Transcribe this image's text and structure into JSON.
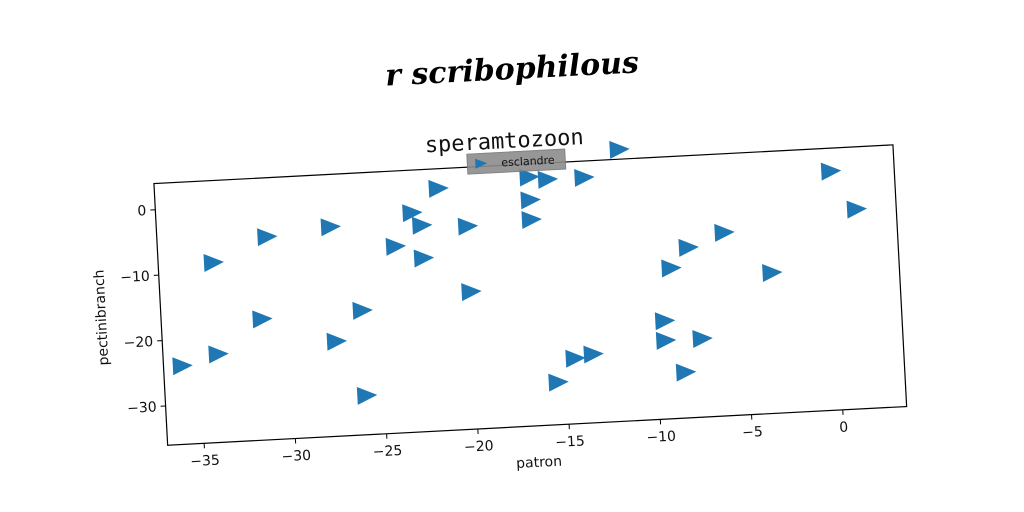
{
  "header": {
    "script_title": "r scribophilous"
  },
  "chart_data": {
    "type": "scatter",
    "title": "speramtozoon",
    "xlabel": "patron",
    "ylabel": "pectinibranch",
    "xlim": [
      -37,
      3.5
    ],
    "ylim": [
      -36,
      4
    ],
    "xticks": [
      -35,
      -30,
      -25,
      -20,
      -15,
      -10,
      -5,
      0
    ],
    "yticks": [
      0,
      -10,
      -20,
      -30
    ],
    "legend": {
      "label": "esclandre",
      "placement": "top-center"
    },
    "marker": "triangle-right",
    "color": "#1f77b4",
    "series": [
      {
        "name": "esclandre",
        "points": [
          [
            -36,
            -24
          ],
          [
            -34,
            -8.5
          ],
          [
            -34,
            -22.5
          ],
          [
            -31.5,
            -17.5
          ],
          [
            -31,
            -5
          ],
          [
            -27.5,
            -4
          ],
          [
            -27.5,
            -21.5
          ],
          [
            -26,
            -17
          ],
          [
            -26,
            -30
          ],
          [
            -24,
            -7.5
          ],
          [
            -23,
            -2.5
          ],
          [
            -22.5,
            -4.5
          ],
          [
            -22.5,
            -9.5
          ],
          [
            -21.5,
            1
          ],
          [
            -20,
            -5
          ],
          [
            -20,
            -15
          ],
          [
            -16.5,
            2
          ],
          [
            -16.5,
            -1.5
          ],
          [
            -16.5,
            -4.5
          ],
          [
            -15.5,
            1.5
          ],
          [
            -15.5,
            -29.5
          ],
          [
            -14.5,
            -26
          ],
          [
            -13.5,
            -25.5
          ],
          [
            -13.5,
            1.5
          ],
          [
            -11.5,
            5.5
          ],
          [
            -9.5,
            -21
          ],
          [
            -9.5,
            -24
          ],
          [
            -9,
            -13
          ],
          [
            -8.5,
            -29
          ],
          [
            -8,
            -10
          ],
          [
            -7.5,
            -24
          ],
          [
            -6,
            -8
          ],
          [
            -3.5,
            -14.5
          ],
          [
            0,
            0.5
          ],
          [
            1.3,
            -5.5
          ]
        ]
      }
    ]
  }
}
